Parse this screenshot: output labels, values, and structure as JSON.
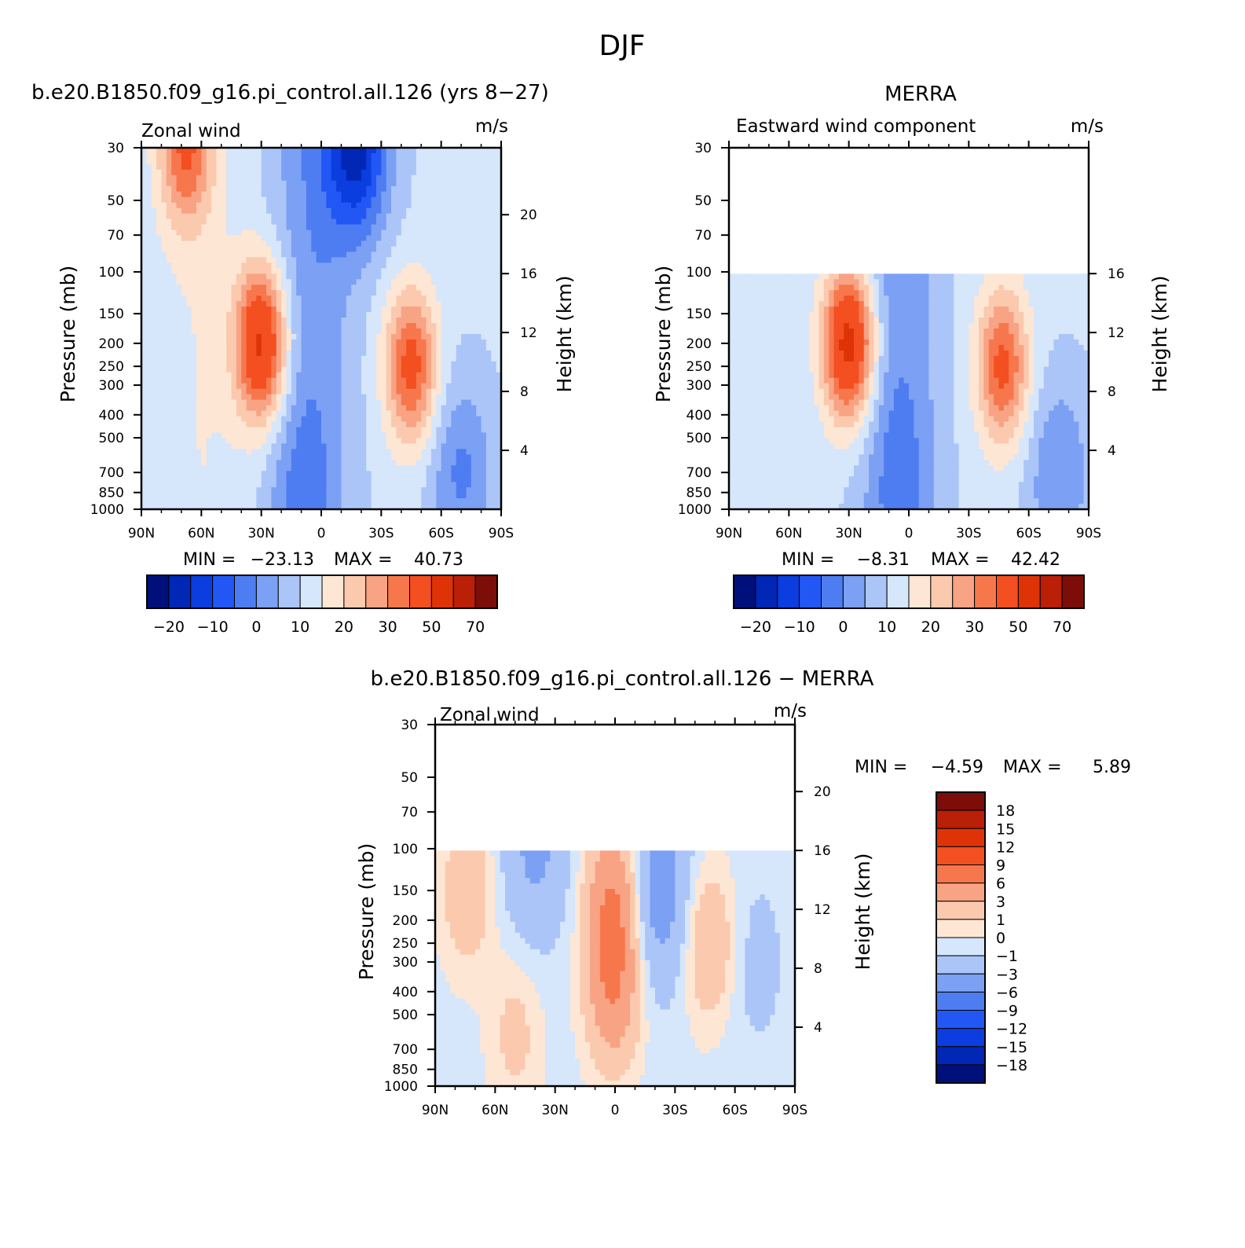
{
  "figure": {
    "title": "DJF"
  },
  "chart_data": [
    {
      "type": "heatmap",
      "title": "b.e20.B1850.f09_g16.pi_control.all.126 (yrs 8-27)",
      "left_label": "Zonal wind",
      "units": "m/s",
      "xlabel": "",
      "ylabel": "Pressure (mb)",
      "y2label": "Height (km)",
      "x_ticks": [
        "90N",
        "60N",
        "30N",
        "0",
        "30S",
        "60S",
        "90S"
      ],
      "y_ticks": [
        30,
        50,
        70,
        100,
        150,
        200,
        250,
        300,
        400,
        500,
        700,
        850,
        1000
      ],
      "y2_ticks": [
        4,
        8,
        12,
        16,
        20
      ],
      "xlim": [
        90,
        -90
      ],
      "ylim": [
        1000,
        30
      ],
      "y_scale": "log",
      "min_label": "MIN =",
      "min_value": "-23.13",
      "max_label": "MAX =",
      "max_value": "40.73",
      "data_top_pressure": 30,
      "features": [
        {
          "lat": 30,
          "p": 200,
          "value": 40.7,
          "kind": "max"
        },
        {
          "lat": -45,
          "p": 250,
          "value": 33,
          "kind": "max"
        },
        {
          "lat": 68,
          "p": 30,
          "value": 32,
          "kind": "max"
        },
        {
          "lat": -18,
          "p": 30,
          "value": -23.1,
          "kind": "min"
        },
        {
          "lat": 12,
          "p": 850,
          "value": -8,
          "kind": "min"
        },
        {
          "lat": -70,
          "p": 700,
          "value": -6,
          "kind": "min"
        }
      ],
      "colorbar": {
        "orientation": "horizontal",
        "labels": [
          "-20",
          "-10",
          "0",
          "10",
          "20",
          "30",
          "50",
          "70"
        ]
      }
    },
    {
      "type": "heatmap",
      "title": "MERRA",
      "left_label": "Eastward wind component",
      "units": "m/s",
      "xlabel": "",
      "ylabel": "Pressure (mb)",
      "y2label": "Height (km)",
      "x_ticks": [
        "90N",
        "60N",
        "30N",
        "0",
        "30S",
        "60S",
        "90S"
      ],
      "y_ticks": [
        30,
        50,
        70,
        100,
        150,
        200,
        250,
        300,
        400,
        500,
        700,
        850,
        1000
      ],
      "y2_ticks": [
        4,
        8,
        12,
        16
      ],
      "xlim": [
        90,
        -90
      ],
      "ylim": [
        1000,
        30
      ],
      "y_scale": "log",
      "min_label": "MIN =",
      "min_value": "-8.31",
      "max_label": "MAX =",
      "max_value": "42.42",
      "data_top_pressure": 100,
      "features": [
        {
          "lat": 30,
          "p": 200,
          "value": 42.4,
          "kind": "max"
        },
        {
          "lat": -47,
          "p": 250,
          "value": 32,
          "kind": "max"
        },
        {
          "lat": 5,
          "p": 700,
          "value": -8.3,
          "kind": "min"
        },
        {
          "lat": -75,
          "p": 700,
          "value": -5,
          "kind": "min"
        }
      ],
      "colorbar": {
        "orientation": "horizontal",
        "labels": [
          "-20",
          "-10",
          "0",
          "10",
          "20",
          "30",
          "50",
          "70"
        ]
      }
    },
    {
      "type": "heatmap",
      "title": "b.e20.B1850.f09_g16.pi_control.all.126 - MERRA",
      "left_label": "Zonal wind",
      "units": "m/s",
      "xlabel": "",
      "ylabel": "Pressure (mb)",
      "y2label": "Height (km)",
      "x_ticks": [
        "90N",
        "60N",
        "30N",
        "0",
        "30S",
        "60S",
        "90S"
      ],
      "y_ticks": [
        30,
        50,
        70,
        100,
        150,
        200,
        250,
        300,
        400,
        500,
        700,
        850,
        1000
      ],
      "y2_ticks": [
        4,
        8,
        12,
        16,
        20
      ],
      "xlim": [
        90,
        -90
      ],
      "ylim": [
        1000,
        30
      ],
      "y_scale": "log",
      "min_label": "MIN =",
      "min_value": "-4.59",
      "max_label": "MAX =",
      "max_value": "5.89",
      "data_top_pressure": 100,
      "features": [
        {
          "lat": 1,
          "p": 170,
          "value": 5.9,
          "kind": "max"
        },
        {
          "lat": 1,
          "p": 400,
          "value": 5,
          "kind": "max"
        },
        {
          "lat": -47,
          "p": 250,
          "value": 3,
          "kind": "max"
        },
        {
          "lat": 74,
          "p": 150,
          "value": 2.5,
          "kind": "max"
        },
        {
          "lat": 50,
          "p": 600,
          "value": 1.5,
          "kind": "max"
        },
        {
          "lat": -22,
          "p": 150,
          "value": -4.6,
          "kind": "min"
        },
        {
          "lat": 40,
          "p": 100,
          "value": -3.5,
          "kind": "min"
        },
        {
          "lat": -70,
          "p": 300,
          "value": -1.5,
          "kind": "min"
        }
      ],
      "colorbar": {
        "orientation": "vertical",
        "labels": [
          "18",
          "15",
          "12",
          "9",
          "6",
          "3",
          "1",
          "0",
          "-1",
          "-3",
          "-6",
          "-9",
          "-12",
          "-15",
          "-18"
        ]
      }
    }
  ],
  "colors": {
    "scale": [
      "#00107a",
      "#0027b5",
      "#0b3ddf",
      "#2257f5",
      "#4e7df2",
      "#7ba0f4",
      "#abc5f8",
      "#d6e6fb",
      "#fde6d4",
      "#fbc9ae",
      "#f8a384",
      "#f7774d",
      "#f34f20",
      "#de3307",
      "#ba1f07",
      "#7c0d08"
    ],
    "diff_scale": [
      "#00107a",
      "#0027b5",
      "#0b3ddf",
      "#2257f5",
      "#4e7df2",
      "#7ba0f4",
      "#abc5f8",
      "#d6e6fb",
      "#fde6d4",
      "#fbc9ae",
      "#f8a384",
      "#f7774d",
      "#f34f20",
      "#de3307",
      "#ba1f07",
      "#7c0d08"
    ]
  }
}
